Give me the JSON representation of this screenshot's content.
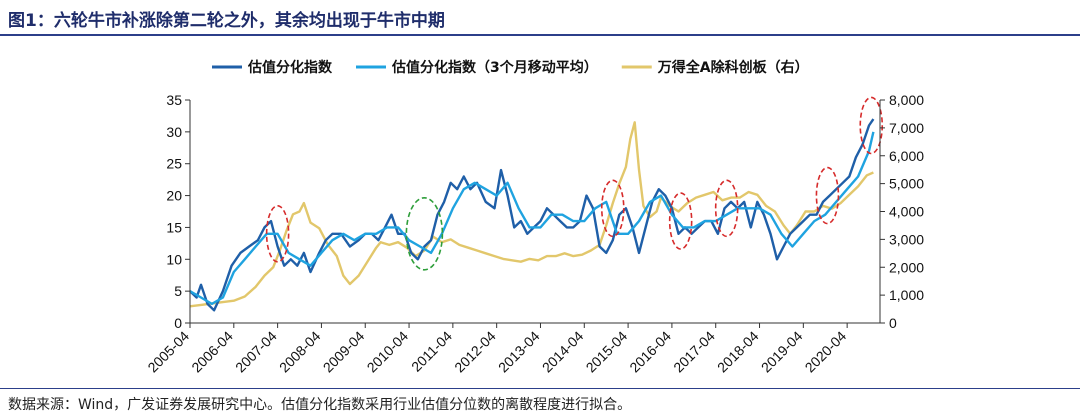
{
  "header": {
    "title": "图1：六轮牛市补涨除第二轮之外，其余均出现于牛市中期"
  },
  "footer": {
    "source": "数据来源：Wind，广发证券发展研究中心。估值分化指数采用行业估值分位数的离散程度进行拟合。"
  },
  "colors": {
    "series1": "#1f5fa8",
    "series2": "#1fa3e0",
    "series3": "#e2c76b",
    "red_ellipse": "#d62b2b",
    "green_ellipse": "#2e9e3a"
  },
  "chart_data": {
    "type": "line",
    "title": "",
    "x_tick_labels": [
      "2005-04",
      "2006-04",
      "2007-04",
      "2008-04",
      "2009-04",
      "2010-04",
      "2011-04",
      "2012-04",
      "2013-04",
      "2014-04",
      "2015-04",
      "2016-04",
      "2017-04",
      "2018-04",
      "2019-04",
      "2020-04"
    ],
    "x_range": [
      2005.25,
      2021.0
    ],
    "y_left": {
      "ticks": [
        "0",
        "5",
        "10",
        "15",
        "20",
        "25",
        "30",
        "35"
      ],
      "range": [
        0,
        35
      ]
    },
    "y_right": {
      "ticks": [
        "0",
        "1,000",
        "2,000",
        "3,000",
        "4,000",
        "5,000",
        "6,000",
        "7,000",
        "8,000"
      ],
      "range": [
        0,
        8000
      ]
    },
    "legend_position": "top",
    "series": [
      {
        "name": "估值分化指数",
        "axis": "left",
        "x": [
          2005.25,
          2005.4,
          2005.5,
          2005.65,
          2005.8,
          2006.0,
          2006.2,
          2006.4,
          2006.6,
          2006.8,
          2006.95,
          2007.1,
          2007.25,
          2007.4,
          2007.55,
          2007.7,
          2007.85,
          2008.0,
          2008.2,
          2008.35,
          2008.5,
          2008.7,
          2008.9,
          2009.1,
          2009.25,
          2009.4,
          2009.55,
          2009.7,
          2009.85,
          2010.0,
          2010.15,
          2010.3,
          2010.45,
          2010.6,
          2010.75,
          2010.9,
          2011.05,
          2011.2,
          2011.35,
          2011.5,
          2011.65,
          2011.8,
          2012.0,
          2012.2,
          2012.35,
          2012.5,
          2012.65,
          2012.8,
          2012.95,
          2013.1,
          2013.25,
          2013.4,
          2013.55,
          2013.7,
          2013.85,
          2014.0,
          2014.15,
          2014.3,
          2014.45,
          2014.6,
          2014.75,
          2014.9,
          2015.05,
          2015.2,
          2015.35,
          2015.5,
          2015.65,
          2015.8,
          2015.95,
          2016.1,
          2016.25,
          2016.4,
          2016.55,
          2016.7,
          2016.85,
          2017.0,
          2017.15,
          2017.3,
          2017.45,
          2017.6,
          2017.75,
          2017.9,
          2018.05,
          2018.2,
          2018.35,
          2018.5,
          2018.65,
          2018.8,
          2018.95,
          2019.1,
          2019.25,
          2019.4,
          2019.55,
          2019.7,
          2019.85,
          2020.0,
          2020.15,
          2020.3,
          2020.45,
          2020.6,
          2020.75,
          2020.85
        ],
        "values": [
          5,
          4,
          6,
          3,
          2,
          5,
          9,
          11,
          12,
          13,
          15,
          16,
          12,
          9,
          10,
          9,
          11,
          8,
          11,
          13,
          14,
          14,
          12,
          13,
          14,
          14,
          13,
          15,
          17,
          14,
          14,
          11,
          10,
          12,
          13,
          17,
          19,
          22,
          21,
          23,
          21,
          22,
          19,
          18,
          24,
          20,
          15,
          16,
          14,
          15,
          16,
          18,
          17,
          16,
          15,
          15,
          16,
          20,
          18,
          12,
          11,
          13,
          17,
          18,
          15,
          11,
          15,
          19,
          21,
          20,
          18,
          14,
          15,
          14,
          15,
          16,
          16,
          14,
          18,
          19,
          18,
          19,
          15,
          19,
          17,
          14,
          10,
          12,
          14,
          15,
          16,
          17,
          17,
          19,
          20,
          21,
          22,
          23,
          26,
          28,
          31,
          32
        ]
      },
      {
        "name": "估值分化指数（3个月移动平均）",
        "axis": "left",
        "x": [
          2005.25,
          2005.5,
          2005.75,
          2006.0,
          2006.25,
          2006.5,
          2006.75,
          2007.0,
          2007.25,
          2007.5,
          2007.75,
          2008.0,
          2008.25,
          2008.5,
          2008.75,
          2009.0,
          2009.25,
          2009.5,
          2009.75,
          2010.0,
          2010.25,
          2010.5,
          2010.75,
          2011.0,
          2011.25,
          2011.5,
          2011.75,
          2012.0,
          2012.25,
          2012.5,
          2012.75,
          2013.0,
          2013.25,
          2013.5,
          2013.75,
          2014.0,
          2014.25,
          2014.5,
          2014.75,
          2015.0,
          2015.25,
          2015.5,
          2015.75,
          2016.0,
          2016.25,
          2016.5,
          2016.75,
          2017.0,
          2017.25,
          2017.5,
          2017.75,
          2018.0,
          2018.25,
          2018.5,
          2018.75,
          2019.0,
          2019.25,
          2019.5,
          2019.75,
          2020.0,
          2020.25,
          2020.5,
          2020.75,
          2020.85
        ],
        "values": [
          5,
          4,
          3,
          4,
          8,
          10,
          12,
          14,
          14,
          11,
          10,
          9,
          11,
          13,
          14,
          13,
          14,
          14,
          15,
          15,
          13,
          12,
          11,
          14,
          18,
          21,
          22,
          21,
          20,
          22,
          18,
          15,
          15,
          17,
          17,
          16,
          16,
          18,
          19,
          14,
          14,
          16,
          19,
          20,
          17,
          15,
          15,
          16,
          16,
          17,
          18,
          18,
          18,
          17,
          14,
          12,
          14,
          16,
          17,
          19,
          21,
          23,
          27,
          30
        ]
      },
      {
        "name": "万得全A除科创板（右）",
        "axis": "right",
        "x": [
          2005.25,
          2005.5,
          2005.75,
          2006.0,
          2006.25,
          2006.5,
          2006.75,
          2006.95,
          2007.15,
          2007.3,
          2007.45,
          2007.6,
          2007.75,
          2007.85,
          2008.0,
          2008.2,
          2008.4,
          2008.6,
          2008.75,
          2008.9,
          2009.1,
          2009.3,
          2009.5,
          2009.6,
          2009.8,
          2010.0,
          2010.2,
          2010.4,
          2010.6,
          2010.8,
          2011.0,
          2011.2,
          2011.4,
          2011.6,
          2011.8,
          2012.0,
          2012.2,
          2012.4,
          2012.6,
          2012.8,
          2013.0,
          2013.2,
          2013.4,
          2013.6,
          2013.8,
          2014.0,
          2014.2,
          2014.4,
          2014.6,
          2014.75,
          2014.9,
          2015.05,
          2015.2,
          2015.3,
          2015.4,
          2015.5,
          2015.6,
          2015.75,
          2015.9,
          2016.0,
          2016.2,
          2016.4,
          2016.6,
          2016.8,
          2017.0,
          2017.2,
          2017.4,
          2017.6,
          2017.8,
          2018.0,
          2018.2,
          2018.4,
          2018.6,
          2018.8,
          2018.95,
          2019.1,
          2019.3,
          2019.5,
          2019.7,
          2019.9,
          2020.1,
          2020.3,
          2020.5,
          2020.7,
          2020.85
        ],
        "values": [
          600,
          650,
          700,
          750,
          800,
          950,
          1300,
          1700,
          2000,
          2600,
          3300,
          3900,
          4000,
          4300,
          3600,
          3400,
          2800,
          2400,
          1700,
          1400,
          1700,
          2200,
          2700,
          2900,
          2800,
          2900,
          2700,
          2400,
          2600,
          3100,
          2900,
          3000,
          2800,
          2700,
          2600,
          2500,
          2400,
          2300,
          2250,
          2200,
          2300,
          2250,
          2400,
          2400,
          2500,
          2400,
          2450,
          2600,
          2800,
          3500,
          4300,
          5000,
          5600,
          6600,
          7200,
          5500,
          4200,
          3800,
          4000,
          4500,
          4200,
          4000,
          4300,
          4500,
          4600,
          4700,
          4400,
          4500,
          4500,
          4700,
          4600,
          4200,
          4000,
          3500,
          3200,
          3500,
          4000,
          4000,
          4200,
          4100,
          4300,
          4600,
          4900,
          5300,
          5400
        ]
      }
    ],
    "annotations": [
      {
        "shape": "ellipse",
        "color": "red",
        "style": "dashed",
        "cx": 2007.25,
        "cy_left": 14
      },
      {
        "shape": "ellipse",
        "color": "green",
        "style": "dashed",
        "cx": 2010.6,
        "cy_left": 14
      },
      {
        "shape": "ellipse",
        "color": "red",
        "style": "dashed",
        "cx": 2014.9,
        "cy_left": 18
      },
      {
        "shape": "ellipse",
        "color": "red",
        "style": "dashed",
        "cx": 2016.45,
        "cy_left": 16
      },
      {
        "shape": "ellipse",
        "color": "red",
        "style": "dashed",
        "cx": 2017.5,
        "cy_left": 18
      },
      {
        "shape": "ellipse",
        "color": "red",
        "style": "dashed",
        "cx": 2019.8,
        "cy_left": 20
      },
      {
        "shape": "ellipse",
        "color": "red",
        "style": "dashed",
        "cx": 2020.8,
        "cy_left": 31
      }
    ]
  }
}
